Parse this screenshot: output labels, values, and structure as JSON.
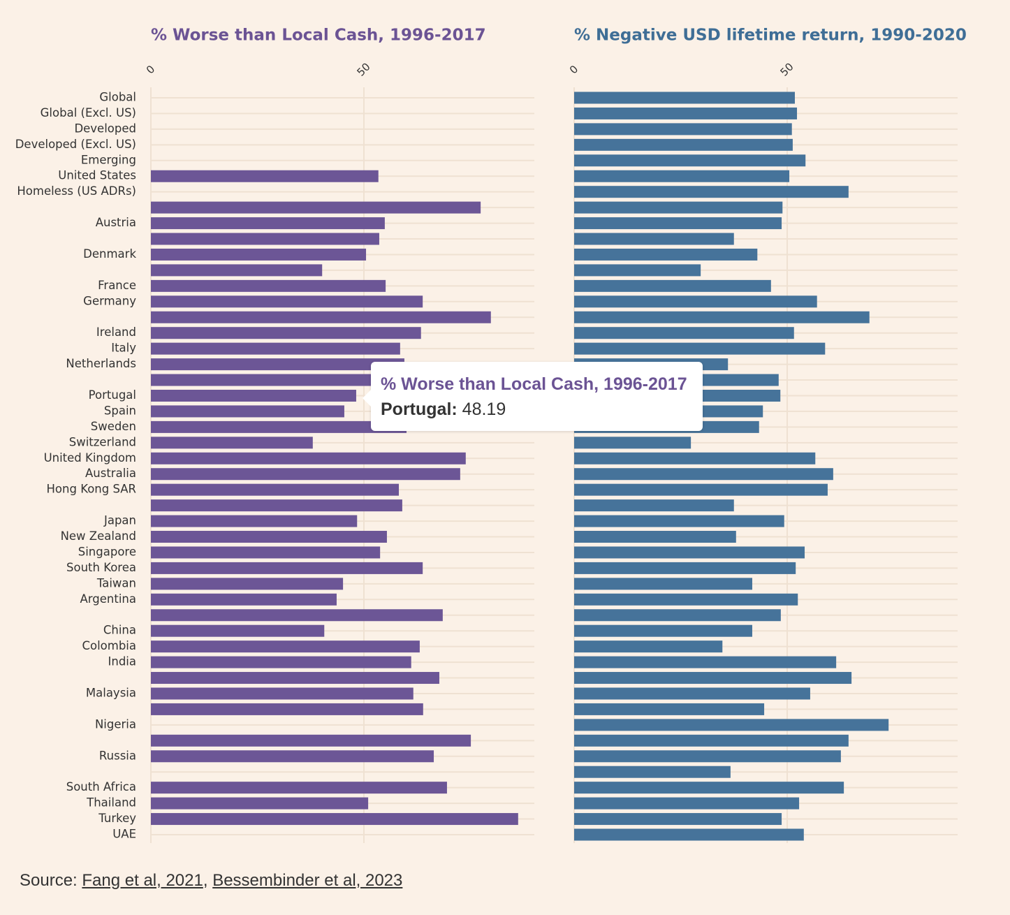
{
  "chart_data": [
    {
      "type": "bar",
      "orientation": "horizontal",
      "title": "% Worse than Local Cash, 1996-2017",
      "color": "#6c5696",
      "title_color": "#6b5394",
      "categories": [
        "Global",
        "Global (Excl. US)",
        "Developed",
        "Developed (Excl. US)",
        "Emerging",
        "United States",
        "Homeless (US ADRs)",
        null,
        "Austria",
        null,
        "Denmark",
        null,
        "France",
        "Germany",
        null,
        "Ireland",
        "Italy",
        "Netherlands",
        null,
        "Portugal",
        "Spain",
        "Sweden",
        "Switzerland",
        "United Kingdom",
        "Australia",
        "Hong Kong SAR",
        null,
        "Japan",
        "New Zealand",
        "Singapore",
        "South Korea",
        "Taiwan",
        "Argentina",
        null,
        "China",
        "Colombia",
        "India",
        null,
        "Malaysia",
        null,
        "Nigeria",
        null,
        "Russia",
        null,
        "South Africa",
        "Thailand",
        "Turkey",
        "UAE"
      ],
      "values": [
        null,
        null,
        null,
        null,
        null,
        53.4,
        null,
        77.4,
        54.9,
        53.6,
        50.5,
        40.2,
        55.1,
        63.8,
        79.8,
        63.4,
        58.5,
        59.5,
        56,
        48.19,
        45.4,
        60.0,
        38.0,
        73.9,
        72.6,
        58.2,
        59.0,
        48.4,
        55.4,
        53.8,
        63.8,
        45.1,
        43.6,
        68.5,
        40.7,
        63.1,
        61.1,
        67.7,
        61.6,
        63.9,
        null,
        75.1,
        66.4,
        null,
        69.5,
        51.0,
        86.2,
        null
      ],
      "xlim": [
        0,
        90
      ],
      "xticks": [
        0,
        50
      ],
      "grid": true
    },
    {
      "type": "bar",
      "orientation": "horizontal",
      "title": "% Negative USD lifetime return, 1990-2020",
      "color": "#46739a",
      "title_color": "#3f6e96",
      "values": [
        51.8,
        52.3,
        51.1,
        51.3,
        54.3,
        50.5,
        64.4,
        48.9,
        48.7,
        37.5,
        43.0,
        29.7,
        46.2,
        57.0,
        69.3,
        51.6,
        58.9,
        36.1,
        48.0,
        48.4,
        44.3,
        43.4,
        27.4,
        56.6,
        60.8,
        59.5,
        37.5,
        49.3,
        38.0,
        54.1,
        52.0,
        41.8,
        52.5,
        48.5,
        41.8,
        34.8,
        61.5,
        65.1,
        55.4,
        44.6,
        73.8,
        64.4,
        62.6,
        36.7,
        63.3,
        52.8,
        48.7,
        53.9
      ],
      "xlim": [
        0,
        90
      ],
      "xticks": [
        0,
        50
      ],
      "grid": true
    }
  ],
  "tooltip": {
    "title": "% Worse than Local Cash, 1996-2017",
    "label": "Portugal:",
    "value": 48.19
  },
  "source": {
    "prefix": "Source:",
    "links": [
      "Fang et al, 2021",
      "Bessembinder et al, 2023"
    ],
    "separator": ","
  }
}
